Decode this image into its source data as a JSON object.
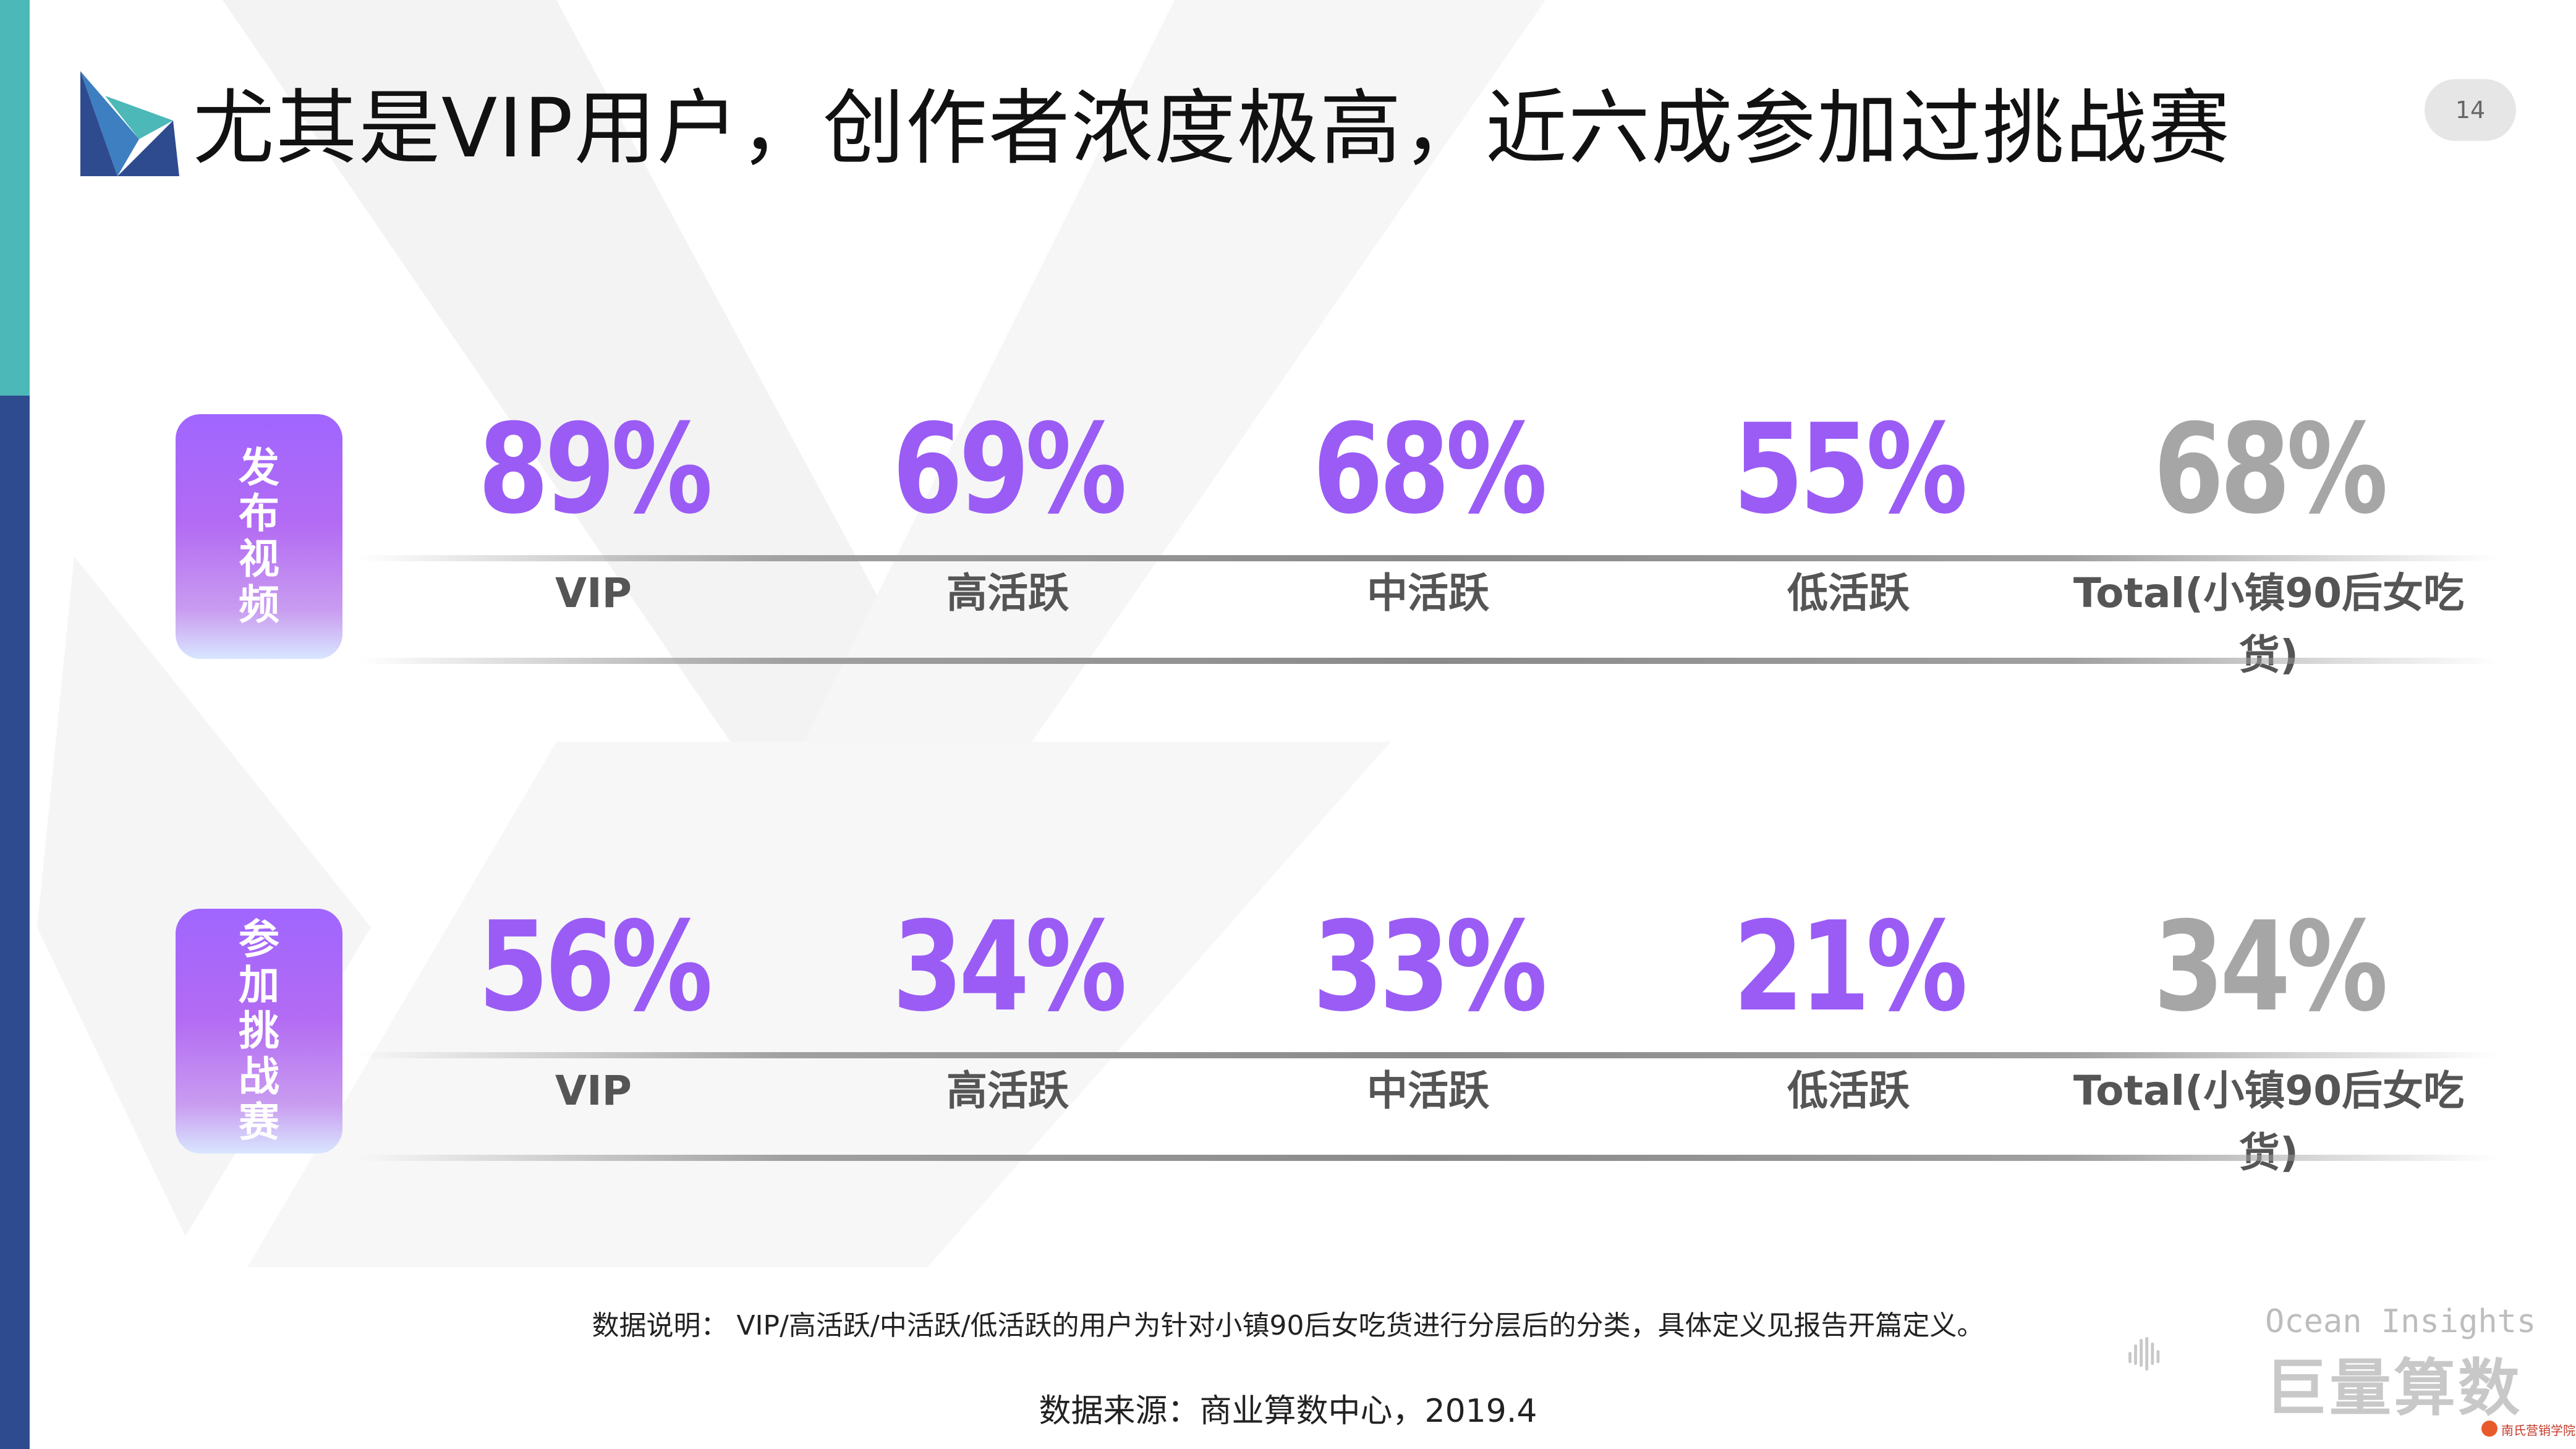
{
  "slide": {
    "title": "尤其是VIP用户，创作者浓度极高，近六成参加过挑战赛",
    "page_number": "14"
  },
  "colors": {
    "accent_purple": "#9a5cf5",
    "total_grey": "#a6a6a6",
    "stripe_teal": "#4db8b8",
    "stripe_navy": "#2f4b8f"
  },
  "rows": [
    {
      "tag": "发布视频",
      "stats": [
        {
          "value": "89%",
          "label": "VIP"
        },
        {
          "value": "69%",
          "label": "高活跃"
        },
        {
          "value": "68%",
          "label": "中活跃"
        },
        {
          "value": "55%",
          "label": "低活跃"
        },
        {
          "value": "68%",
          "label": "Total(小镇90后女吃货)"
        }
      ]
    },
    {
      "tag": "参加挑战赛",
      "stats": [
        {
          "value": "56%",
          "label": "VIP"
        },
        {
          "value": "34%",
          "label": "高活跃"
        },
        {
          "value": "33%",
          "label": "中活跃"
        },
        {
          "value": "21%",
          "label": "低活跃"
        },
        {
          "value": "34%",
          "label": "Total(小镇90后女吃货)"
        }
      ]
    }
  ],
  "footer": {
    "note": "数据说明： VIP/高活跃/中活跃/低活跃的用户为针对小镇90后女吃货进行分层后的分类，具体定义见报告开篇定义。",
    "source": "数据来源：商业算数中心，2019.4"
  },
  "brand": {
    "english": "Ocean Insights",
    "chinese": "巨量算数",
    "corner_watermark": "南氏营销学院"
  }
}
